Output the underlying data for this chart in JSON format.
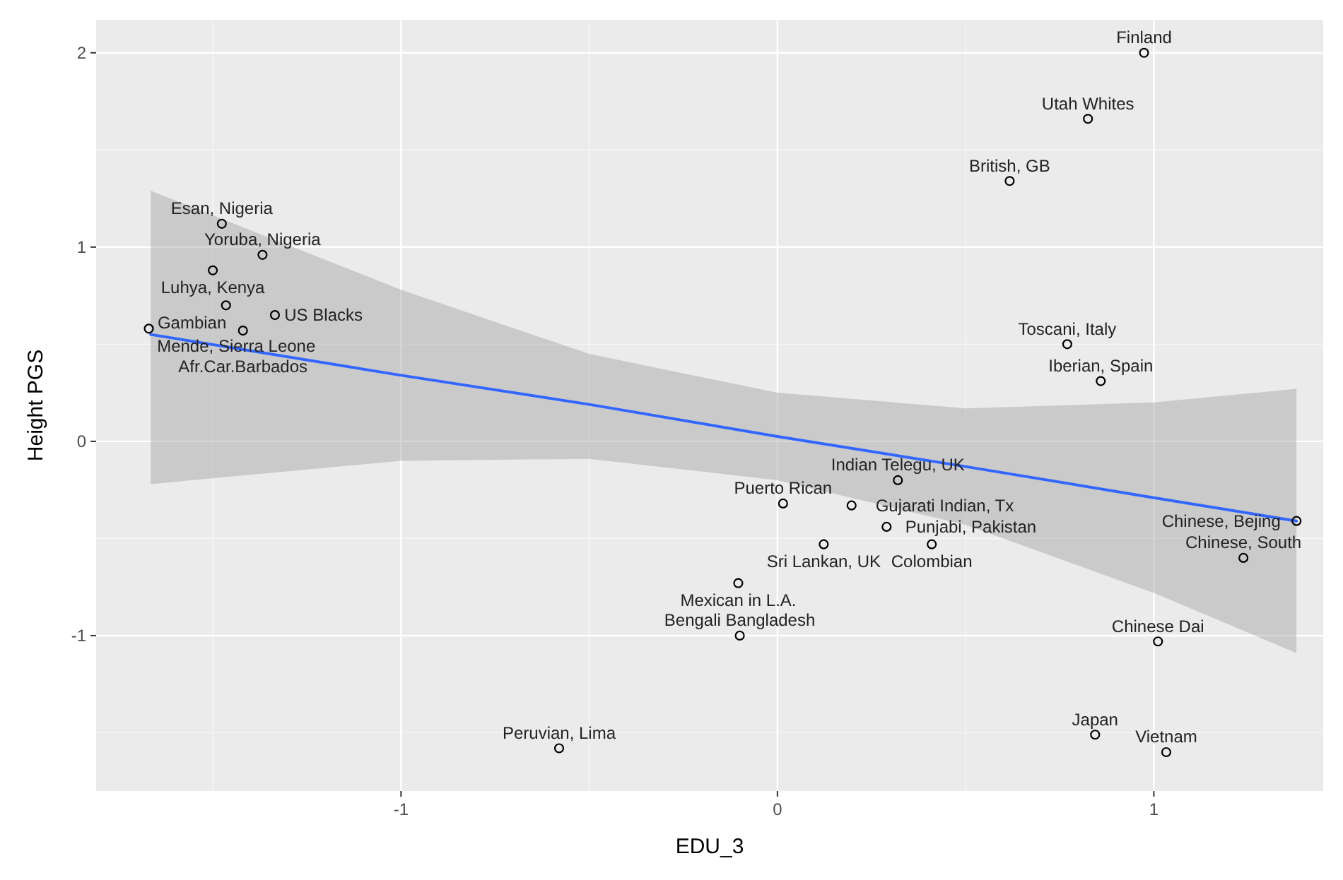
{
  "chart_data": {
    "type": "scatter",
    "xlabel": "EDU_3",
    "ylabel": "Height PGS",
    "xlim": [
      -1.81,
      1.45
    ],
    "ylim": [
      -1.8,
      2.17
    ],
    "xticks": [
      -1,
      0,
      1
    ],
    "yticks": [
      -1,
      0,
      1,
      2
    ],
    "grid": true,
    "marker": "circle",
    "series": [
      {
        "type": "scatter",
        "color": "#000000",
        "x": [
          -1.476,
          -1.368,
          -1.5,
          -1.465,
          -1.335,
          -1.67,
          -1.42,
          0.32,
          0.015,
          0.197,
          0.29,
          0.123,
          0.41,
          -0.104,
          -0.1,
          -0.58,
          0.974,
          0.825,
          0.617,
          0.77,
          0.859,
          1.379,
          1.238,
          1.011,
          0.844,
          1.033
        ],
        "values": [
          1.12,
          0.96,
          0.88,
          0.7,
          0.65,
          0.58,
          0.57,
          -0.2,
          -0.32,
          -0.33,
          -0.44,
          -0.53,
          -0.53,
          -0.73,
          -1.0,
          -1.58,
          2.0,
          1.66,
          1.34,
          0.5,
          0.31,
          -0.41,
          -0.6,
          -1.03,
          -1.51,
          -1.6
        ]
      },
      {
        "type": "line",
        "color": "#3366ff",
        "line_style": "solid",
        "marker": "none",
        "x": [
          -1.665,
          -1,
          -0.5,
          0,
          0.5,
          1,
          1.379
        ],
        "values": [
          0.55,
          0.34,
          0.19,
          0.025,
          -0.13,
          -0.29,
          -0.41
        ],
        "lower": [
          -0.22,
          -0.1,
          -0.09,
          -0.2,
          -0.43,
          -0.78,
          -1.09
        ],
        "upper": [
          1.29,
          0.78,
          0.45,
          0.25,
          0.17,
          0.2,
          0.27
        ]
      }
    ],
    "annotations": [
      {
        "text": "Esan, Nigeria",
        "x": -1.476,
        "y": 1.12
      },
      {
        "text": "Yoruba, Nigeria",
        "x": -1.368,
        "y": 0.96
      },
      {
        "text": "Luhya, Kenya",
        "x": -1.5,
        "y": 0.88
      },
      {
        "text": "Gambian",
        "x": -1.465,
        "y": 0.7
      },
      {
        "text": "Mende, Sierra Leone",
        "x": -1.67,
        "y": 0.58
      },
      {
        "text": "US Blacks",
        "x": -1.335,
        "y": 0.65
      },
      {
        "text": "Afr.Car.Barbados",
        "x": -1.42,
        "y": 0.57
      },
      {
        "text": "Finland",
        "x": 0.974,
        "y": 2.0
      },
      {
        "text": "Utah Whites",
        "x": 0.825,
        "y": 1.66
      },
      {
        "text": "British, GB",
        "x": 0.617,
        "y": 1.34
      },
      {
        "text": "Toscani, Italy",
        "x": 0.77,
        "y": 0.5
      },
      {
        "text": "Iberian, Spain",
        "x": 0.859,
        "y": 0.31
      },
      {
        "text": "Indian Telegu, UK",
        "x": 0.32,
        "y": -0.2
      },
      {
        "text": "Puerto Rican",
        "x": 0.015,
        "y": -0.32
      },
      {
        "text": "Gujarati Indian, Tx",
        "x": 0.197,
        "y": -0.33
      },
      {
        "text": "Punjabi, Pakistan",
        "x": 0.29,
        "y": -0.44
      },
      {
        "text": "Sri Lankan, UK",
        "x": 0.123,
        "y": -0.53
      },
      {
        "text": "Colombian",
        "x": 0.41,
        "y": -0.53
      },
      {
        "text": "Chinese, Bejing",
        "x": 1.379,
        "y": -0.41
      },
      {
        "text": "Chinese, South",
        "x": 1.238,
        "y": -0.6
      },
      {
        "text": "Mexican in L.A.",
        "x": -0.104,
        "y": -0.73
      },
      {
        "text": "Bengali Bangladesh",
        "x": -0.1,
        "y": -1.0
      },
      {
        "text": "Chinese Dai",
        "x": 1.011,
        "y": -1.03
      },
      {
        "text": "Japan",
        "x": 0.844,
        "y": -1.51
      },
      {
        "text": "Peruvian, Lima",
        "x": -0.58,
        "y": -1.58
      },
      {
        "text": "Vietnam",
        "x": 1.033,
        "y": -1.6
      }
    ]
  }
}
